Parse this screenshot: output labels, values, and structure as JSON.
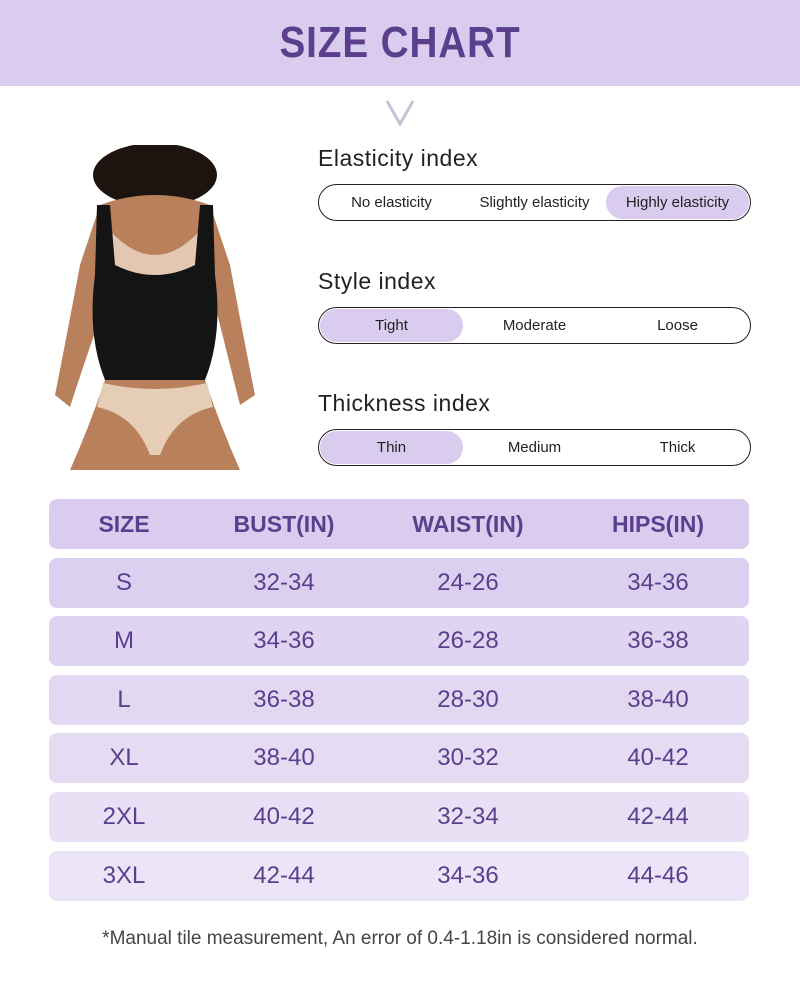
{
  "header": {
    "title": "SIZE CHART"
  },
  "colors": {
    "accent": "#d9ccee",
    "text_purple": "#5b3f8c"
  },
  "indices": [
    {
      "title": "Elasticity index",
      "options": [
        "No elasticity",
        "Slightly elasticity",
        "Highly elasticity"
      ],
      "selected": "Highly elasticity"
    },
    {
      "title": "Style index",
      "options": [
        "Tight",
        "Moderate",
        "Loose"
      ],
      "selected": "Tight"
    },
    {
      "title": "Thickness index",
      "options": [
        "Thin",
        "Medium",
        "Thick"
      ],
      "selected": "Thin"
    }
  ],
  "table": {
    "headers": [
      "SIZE",
      "BUST(IN)",
      "WAIST(IN)",
      "HIPS(IN)"
    ],
    "rows": [
      [
        "S",
        "32-34",
        "24-26",
        "34-36"
      ],
      [
        "M",
        "34-36",
        "26-28",
        "36-38"
      ],
      [
        "L",
        "36-38",
        "28-30",
        "38-40"
      ],
      [
        "XL",
        "38-40",
        "30-32",
        "40-42"
      ],
      [
        "2XL",
        "40-42",
        "32-34",
        "42-44"
      ],
      [
        "3XL",
        "42-44",
        "34-36",
        "44-46"
      ]
    ]
  },
  "footnote": "*Manual tile measurement, An error of 0.4-1.18in is considered normal."
}
